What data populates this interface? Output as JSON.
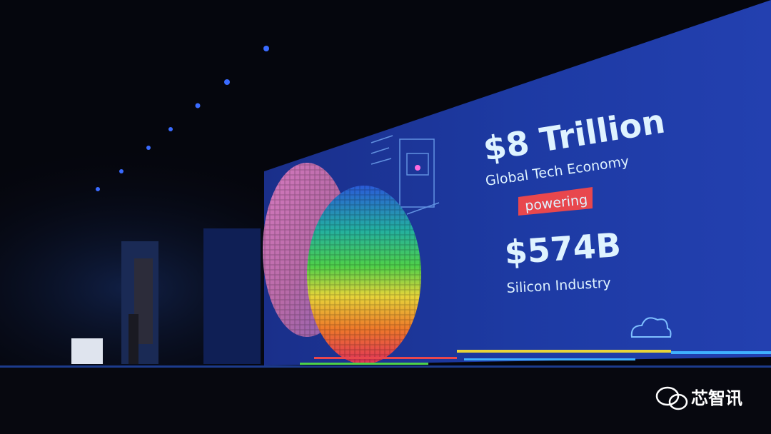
{
  "screen": {
    "headline": "$8 Trillion",
    "headline_caption": "Global Tech Economy",
    "connector": "powering",
    "figure": "$574B",
    "figure_caption": "Silicon Industry"
  },
  "watermark": "芯智讯"
}
